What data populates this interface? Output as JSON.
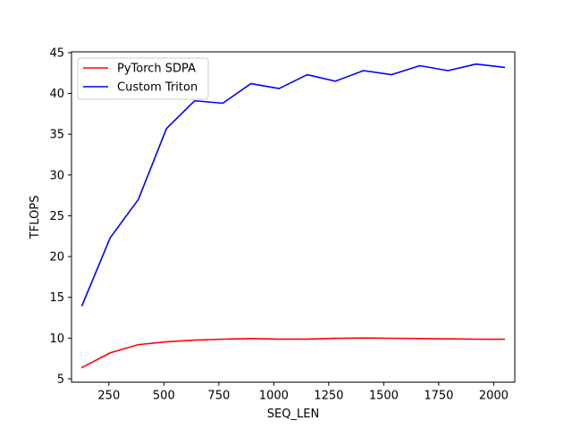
{
  "chart_data": {
    "type": "line",
    "title": "",
    "xlabel": "SEQ_LEN",
    "ylabel": "TFLOPS",
    "xlim": [
      80,
      2096
    ],
    "ylim": [
      4.6,
      45.1
    ],
    "xticks": [
      250,
      500,
      750,
      1000,
      1250,
      1500,
      1750,
      2000
    ],
    "yticks": [
      5,
      10,
      15,
      20,
      25,
      30,
      35,
      40,
      45
    ],
    "grid": false,
    "legend_position": "upper-left",
    "x": [
      128,
      256,
      384,
      512,
      640,
      768,
      896,
      1024,
      1152,
      1280,
      1408,
      1536,
      1664,
      1792,
      1920,
      2048
    ],
    "series": [
      {
        "name": "PyTorch SDPA",
        "color": "#ff0000",
        "values": [
          6.4,
          8.2,
          9.2,
          9.55,
          9.75,
          9.87,
          9.95,
          9.88,
          9.88,
          9.97,
          10.02,
          9.98,
          9.95,
          9.91,
          9.87,
          9.86
        ]
      },
      {
        "name": "Custom Triton",
        "color": "#0000ff",
        "values": [
          14.0,
          22.3,
          27.0,
          35.7,
          39.1,
          38.8,
          41.2,
          40.6,
          42.3,
          41.5,
          42.8,
          42.3,
          43.4,
          42.8,
          43.6,
          43.2
        ]
      }
    ]
  }
}
